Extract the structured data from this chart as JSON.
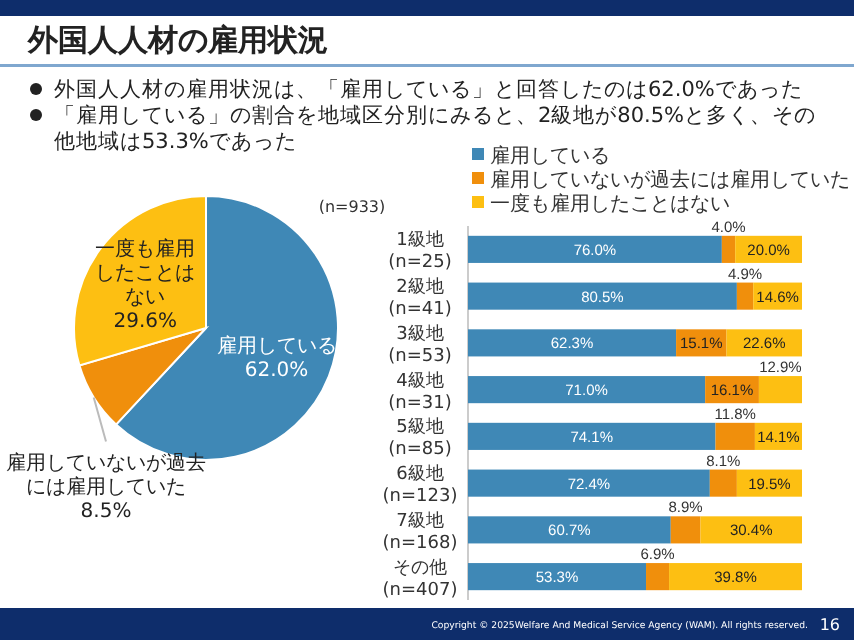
{
  "chart_data": [
    {
      "type": "pie",
      "title": "外国人人材の雇用状況",
      "subtitle": "(n=933)",
      "annotations": [
        "外国人人材の雇用状況は、「雇用している」と回答したのは62.0%であった",
        "「雇用している」の割合を地域区分別にみると、2級地が80.5%と多く、その他地域は53.3%であった"
      ],
      "categories": [
        "雇用している",
        "雇用していないが過去には雇用していた",
        "一度も雇用したことはない"
      ],
      "values": [
        62.0,
        8.5,
        29.6
      ],
      "colors": [
        "#3f88b6",
        "#f08f0c",
        "#fdbf12"
      ],
      "value_labels": [
        "62.0%",
        "8.5%",
        "29.6%"
      ]
    },
    {
      "type": "bar",
      "orientation": "horizontal",
      "stacked": true,
      "legend": "top",
      "tick_labels": "y",
      "xlim": [
        0,
        100
      ],
      "annotations": [
        "Copyright © 2025Welfare And Medical Service Agency (WAM). All rights reserved.",
        "16"
      ],
      "categories": [
        "1級地\n(n=25)",
        "2級地\n(n=41)",
        "3級地\n(n=53)",
        "4級地\n(n=31)",
        "5級地\n(n=85)",
        "6級地\n(n=123)",
        "7級地\n(n=168)",
        "その他\n(n=407)"
      ],
      "series": [
        {
          "name": "雇用している",
          "color": "#3f88b6",
          "values": [
            76.0,
            80.5,
            62.3,
            71.0,
            74.1,
            72.4,
            60.7,
            53.3
          ],
          "value_labels": [
            "76.0%",
            "80.5%",
            "62.3%",
            "71.0%",
            "74.1%",
            "72.4%",
            "60.7%",
            "53.3%"
          ]
        },
        {
          "name": "雇用していないが過去には雇用していた",
          "color": "#f08f0c",
          "values": [
            4.0,
            4.9,
            15.1,
            16.1,
            11.8,
            8.1,
            8.9,
            6.9
          ],
          "value_labels": [
            "4.0%",
            "4.9%",
            "15.1%",
            "16.1%",
            "11.8%",
            "8.1%",
            "8.9%",
            "6.9%"
          ]
        },
        {
          "name": "一度も雇用したことはない",
          "color": "#fdbf12",
          "values": [
            20.0,
            14.6,
            22.6,
            12.9,
            14.1,
            19.5,
            30.4,
            39.8
          ],
          "value_labels": [
            "20.0%",
            "14.6%",
            "22.6%",
            "12.9%",
            "14.1%",
            "19.5%",
            "30.4%",
            "39.8%"
          ]
        }
      ]
    }
  ]
}
